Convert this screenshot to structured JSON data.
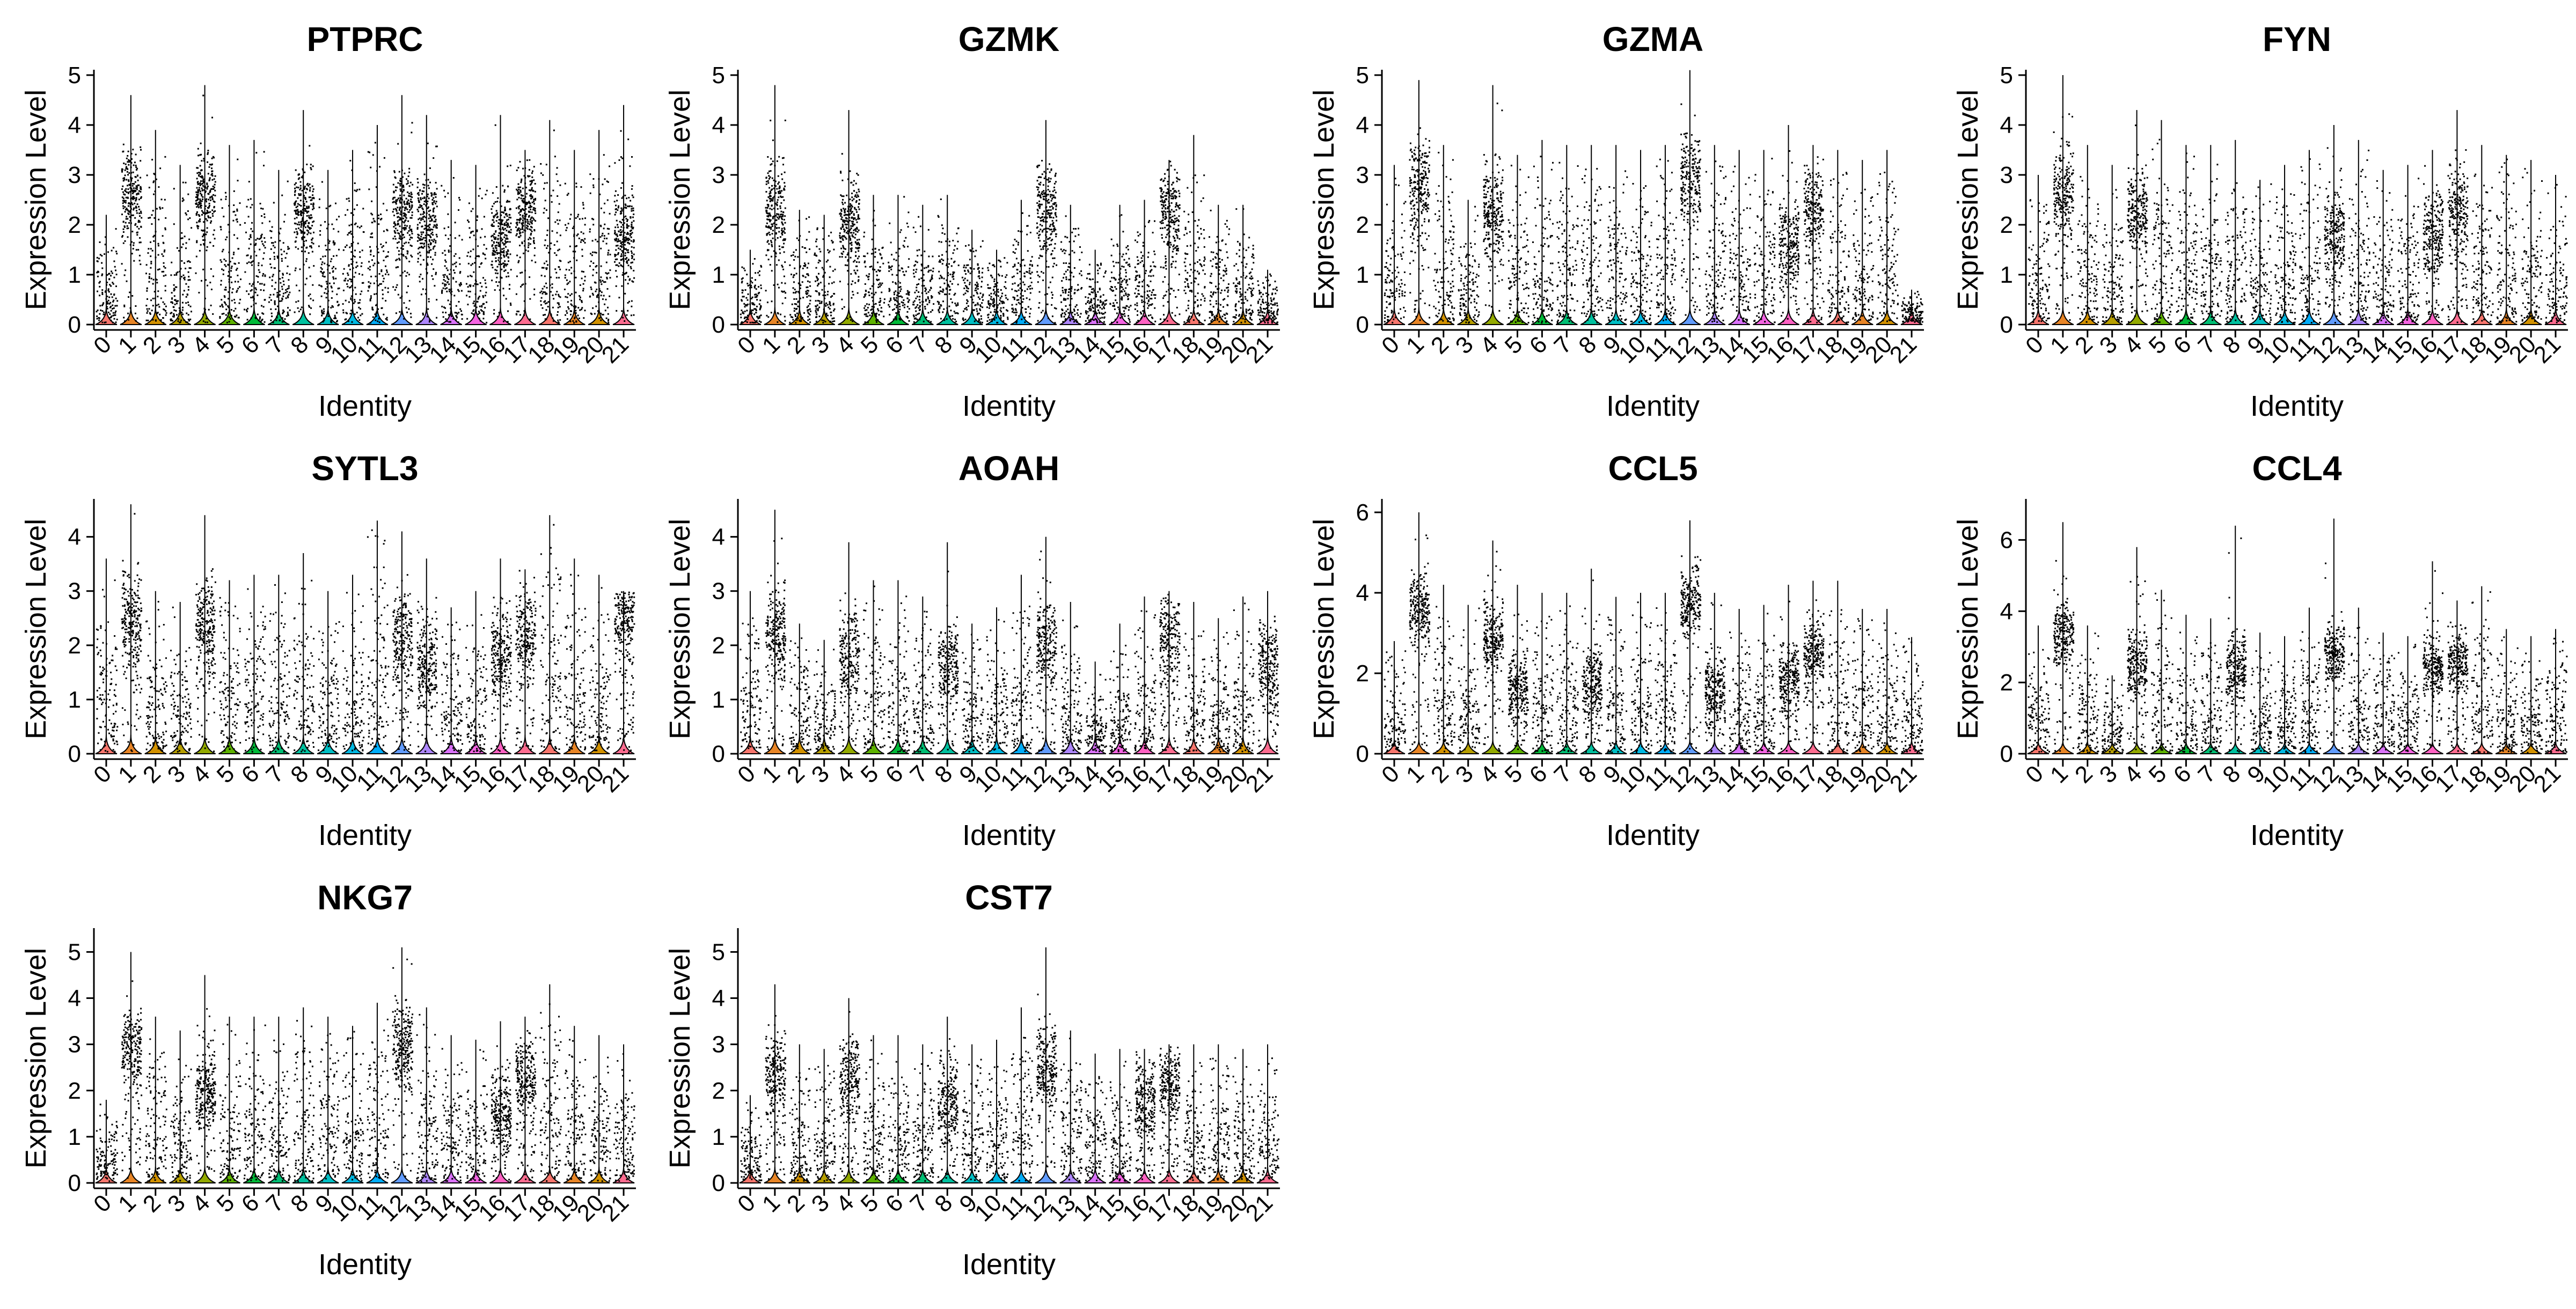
{
  "chart_data": [
    {
      "type": "violin",
      "title": "PTPRC",
      "xlabel": "Identity",
      "ylabel": "Expression Level",
      "ylim": [
        0,
        5
      ],
      "yticks": [
        0,
        1,
        2,
        3,
        4,
        5
      ],
      "categories": [
        "0",
        "1",
        "2",
        "3",
        "4",
        "5",
        "6",
        "7",
        "8",
        "9",
        "10",
        "11",
        "12",
        "13",
        "14",
        "15",
        "16",
        "17",
        "18",
        "19",
        "20",
        "21"
      ],
      "values": [
        0.6,
        2.6,
        0.8,
        0.5,
        2.6,
        1.0,
        1.0,
        1.0,
        2.3,
        0.5,
        0.4,
        0.8,
        2.3,
        2.0,
        0.5,
        0.9,
        1.8,
        2.3,
        1.1,
        1.1,
        0.6,
        1.8
      ],
      "maxima": [
        2.2,
        4.6,
        3.9,
        3.2,
        4.8,
        3.6,
        3.7,
        3.1,
        4.3,
        3.1,
        3.5,
        4.0,
        4.6,
        4.2,
        3.3,
        3.2,
        4.2,
        3.5,
        4.1,
        3.5,
        3.9,
        4.4
      ],
      "violin_colors": [
        "#F8766D",
        "#E88526",
        "#D39200",
        "#B79F00",
        "#93AA00",
        "#5EB300",
        "#00BA38",
        "#00BF74",
        "#00C19F",
        "#00BFC4",
        "#00B9E3",
        "#00ADFA",
        "#619CFF",
        "#AE87FF",
        "#DB72FB",
        "#F564E3",
        "#FF61C3",
        "#FF6C90",
        "#F8766D",
        "#E88526",
        "#D39200",
        "#FF6C90"
      ]
    },
    {
      "type": "violin",
      "title": "GZMK",
      "xlabel": "Identity",
      "ylabel": "Expression Level",
      "ylim": [
        0,
        5
      ],
      "yticks": [
        0,
        1,
        2,
        3,
        4,
        5
      ],
      "categories": [
        "0",
        "1",
        "2",
        "3",
        "4",
        "5",
        "6",
        "7",
        "8",
        "9",
        "10",
        "11",
        "12",
        "13",
        "14",
        "15",
        "16",
        "17",
        "18",
        "19",
        "20",
        "21"
      ],
      "values": [
        0.0,
        2.3,
        0.7,
        0.3,
        2.0,
        0.7,
        0.7,
        0.7,
        0.6,
        0.4,
        0.2,
        0.4,
        2.3,
        0.8,
        0.4,
        0.5,
        0.9,
        2.3,
        1.0,
        0.5,
        0.3,
        0.5
      ],
      "maxima": [
        1.5,
        4.8,
        2.3,
        2.2,
        4.3,
        2.6,
        2.6,
        2.4,
        2.6,
        1.9,
        1.5,
        2.5,
        4.1,
        2.4,
        1.5,
        2.4,
        2.5,
        3.3,
        3.8,
        2.4,
        2.4,
        1.1
      ],
      "violin_colors": [
        "#F8766D",
        "#E88526",
        "#D39200",
        "#B79F00",
        "#93AA00",
        "#5EB300",
        "#00BA38",
        "#00BF74",
        "#00C19F",
        "#00BFC4",
        "#00B9E3",
        "#00ADFA",
        "#619CFF",
        "#AE87FF",
        "#DB72FB",
        "#F564E3",
        "#FF61C3",
        "#FF6C90",
        "#F8766D",
        "#E88526",
        "#D39200",
        "#FF6C90"
      ]
    },
    {
      "type": "violin",
      "title": "GZMA",
      "xlabel": "Identity",
      "ylabel": "Expression Level",
      "ylim": [
        0,
        5
      ],
      "yticks": [
        0,
        1,
        2,
        3,
        4,
        5
      ],
      "categories": [
        "0",
        "1",
        "2",
        "3",
        "4",
        "5",
        "6",
        "7",
        "8",
        "9",
        "10",
        "11",
        "12",
        "13",
        "14",
        "15",
        "16",
        "17",
        "18",
        "19",
        "20",
        "21"
      ],
      "values": [
        0.7,
        2.8,
        1.0,
        0.5,
        2.2,
        1.0,
        0.9,
        1.0,
        1.0,
        0.4,
        0.4,
        0.5,
        2.9,
        1.2,
        0.4,
        0.9,
        1.6,
        2.3,
        1.1,
        0.9,
        1.1,
        0.7
      ],
      "maxima": [
        3.2,
        4.9,
        3.6,
        2.5,
        4.8,
        3.4,
        3.7,
        3.6,
        3.6,
        3.6,
        3.5,
        3.6,
        5.1,
        3.6,
        3.5,
        3.5,
        4.0,
        3.6,
        3.5,
        3.3,
        3.5,
        0.7
      ],
      "violin_colors": [
        "#F8766D",
        "#E88526",
        "#D39200",
        "#B79F00",
        "#93AA00",
        "#5EB300",
        "#00BA38",
        "#00BF74",
        "#00C19F",
        "#00BFC4",
        "#00B9E3",
        "#00ADFA",
        "#619CFF",
        "#AE87FF",
        "#DB72FB",
        "#F564E3",
        "#FF61C3",
        "#FF6C90",
        "#F8766D",
        "#E88526",
        "#D39200",
        "#FF6C90"
      ]
    },
    {
      "type": "violin",
      "title": "FYN",
      "xlabel": "Identity",
      "ylabel": "Expression Level",
      "ylim": [
        0,
        5
      ],
      "yticks": [
        0,
        1,
        2,
        3,
        4,
        5
      ],
      "categories": [
        "0",
        "1",
        "2",
        "3",
        "4",
        "5",
        "6",
        "7",
        "8",
        "9",
        "10",
        "11",
        "12",
        "13",
        "14",
        "15",
        "16",
        "17",
        "18",
        "19",
        "20",
        "21"
      ],
      "values": [
        0.7,
        2.6,
        0.8,
        0.6,
        2.2,
        1.4,
        1.2,
        1.2,
        1.3,
        0.6,
        0.5,
        1.4,
        1.8,
        1.4,
        0.7,
        1.0,
        1.8,
        2.3,
        1.2,
        0.9,
        1.0,
        1.2
      ],
      "maxima": [
        3.0,
        5.0,
        3.6,
        3.2,
        4.3,
        4.1,
        3.6,
        3.6,
        3.7,
        2.9,
        3.2,
        3.5,
        4.0,
        3.7,
        3.1,
        3.2,
        3.5,
        4.3,
        3.6,
        3.4,
        3.3,
        3.0
      ],
      "violin_colors": [
        "#F8766D",
        "#E88526",
        "#D39200",
        "#B79F00",
        "#93AA00",
        "#5EB300",
        "#00BA38",
        "#00BF74",
        "#00C19F",
        "#00BFC4",
        "#00B9E3",
        "#00ADFA",
        "#619CFF",
        "#AE87FF",
        "#DB72FB",
        "#F564E3",
        "#FF61C3",
        "#FF6C90",
        "#F8766D",
        "#E88526",
        "#D39200",
        "#FF6C90"
      ]
    },
    {
      "type": "violin",
      "title": "SYTL3",
      "xlabel": "Identity",
      "ylabel": "Expression Level",
      "ylim": [
        0,
        4.6
      ],
      "yticks": [
        0,
        1,
        2,
        3,
        4
      ],
      "categories": [
        "0",
        "1",
        "2",
        "3",
        "4",
        "5",
        "6",
        "7",
        "8",
        "9",
        "10",
        "11",
        "12",
        "13",
        "14",
        "15",
        "16",
        "17",
        "18",
        "19",
        "20",
        "21"
      ],
      "values": [
        0.9,
        2.5,
        0.8,
        0.6,
        2.4,
        0.9,
        0.8,
        0.8,
        1.4,
        0.5,
        0.4,
        0.6,
        2.1,
        1.6,
        0.5,
        0.9,
        1.8,
        2.2,
        1.0,
        0.8,
        0.6,
        2.6
      ],
      "maxima": [
        3.6,
        4.6,
        3.0,
        2.8,
        4.4,
        3.2,
        3.3,
        3.3,
        3.7,
        3.0,
        3.3,
        4.3,
        4.1,
        3.6,
        2.7,
        3.0,
        3.6,
        3.4,
        4.4,
        3.6,
        3.3,
        3.0
      ],
      "violin_colors": [
        "#F8766D",
        "#E88526",
        "#D39200",
        "#B79F00",
        "#93AA00",
        "#5EB300",
        "#00BA38",
        "#00BF74",
        "#00C19F",
        "#00BFC4",
        "#00B9E3",
        "#00ADFA",
        "#619CFF",
        "#AE87FF",
        "#DB72FB",
        "#F564E3",
        "#FF61C3",
        "#FF6C90",
        "#F8766D",
        "#E88526",
        "#D39200",
        "#FF6C90"
      ]
    },
    {
      "type": "violin",
      "title": "AOAH",
      "xlabel": "Identity",
      "ylabel": "Expression Level",
      "ylim": [
        0,
        4.6
      ],
      "yticks": [
        0,
        1,
        2,
        3,
        4
      ],
      "categories": [
        "0",
        "1",
        "2",
        "3",
        "4",
        "5",
        "6",
        "7",
        "8",
        "9",
        "10",
        "11",
        "12",
        "13",
        "14",
        "15",
        "16",
        "17",
        "18",
        "19",
        "20",
        "21"
      ],
      "values": [
        0.6,
        2.2,
        0.7,
        0.4,
        1.8,
        0.9,
        0.8,
        0.8,
        1.6,
        0.5,
        0.4,
        0.6,
        2.0,
        1.1,
        0.4,
        0.7,
        1.0,
        2.2,
        0.9,
        0.9,
        1.0,
        1.6
      ],
      "maxima": [
        3.0,
        4.5,
        2.4,
        2.1,
        3.9,
        3.2,
        3.2,
        2.9,
        3.9,
        2.4,
        2.7,
        3.3,
        4.0,
        2.8,
        1.7,
        2.4,
        2.9,
        3.0,
        2.8,
        2.5,
        2.9,
        3.0
      ],
      "violin_colors": [
        "#F8766D",
        "#E88526",
        "#D39200",
        "#B79F00",
        "#93AA00",
        "#5EB300",
        "#00BA38",
        "#00BF74",
        "#00C19F",
        "#00BFC4",
        "#00B9E3",
        "#00ADFA",
        "#619CFF",
        "#AE87FF",
        "#DB72FB",
        "#F564E3",
        "#FF61C3",
        "#FF6C90",
        "#F8766D",
        "#E88526",
        "#D39200",
        "#FF6C90"
      ]
    },
    {
      "type": "violin",
      "title": "CCL5",
      "xlabel": "Identity",
      "ylabel": "Expression Level",
      "ylim": [
        0,
        6.2
      ],
      "yticks": [
        0,
        2,
        4,
        6
      ],
      "categories": [
        "0",
        "1",
        "2",
        "3",
        "4",
        "5",
        "6",
        "7",
        "8",
        "9",
        "10",
        "11",
        "12",
        "13",
        "14",
        "15",
        "16",
        "17",
        "18",
        "19",
        "20",
        "21"
      ],
      "values": [
        0.8,
        3.6,
        1.2,
        0.6,
        2.8,
        1.6,
        1.3,
        1.4,
        1.7,
        0.7,
        0.5,
        0.7,
        3.8,
        1.6,
        0.6,
        1.0,
        1.8,
        2.5,
        1.5,
        1.2,
        1.2,
        1.0
      ],
      "maxima": [
        2.8,
        6.0,
        4.2,
        3.7,
        5.3,
        4.2,
        4.0,
        4.0,
        4.6,
        3.9,
        4.0,
        4.0,
        5.8,
        4.0,
        3.6,
        3.7,
        4.2,
        4.3,
        4.3,
        3.6,
        3.6,
        2.9
      ],
      "violin_colors": [
        "#F8766D",
        "#E88526",
        "#D39200",
        "#B79F00",
        "#93AA00",
        "#5EB300",
        "#00BA38",
        "#00BF74",
        "#00C19F",
        "#00BFC4",
        "#00B9E3",
        "#00ADFA",
        "#619CFF",
        "#AE87FF",
        "#DB72FB",
        "#F564E3",
        "#FF61C3",
        "#FF6C90",
        "#F8766D",
        "#E88526",
        "#D39200",
        "#FF6C90"
      ]
    },
    {
      "type": "violin",
      "title": "CCL4",
      "xlabel": "Identity",
      "ylabel": "Expression Level",
      "ylim": [
        0,
        7
      ],
      "yticks": [
        0,
        2,
        4,
        6
      ],
      "categories": [
        "0",
        "1",
        "2",
        "3",
        "4",
        "5",
        "6",
        "7",
        "8",
        "9",
        "10",
        "11",
        "12",
        "13",
        "14",
        "15",
        "16",
        "17",
        "18",
        "19",
        "20",
        "21"
      ],
      "values": [
        1.0,
        3.4,
        0.9,
        0.6,
        2.5,
        1.4,
        1.1,
        1.1,
        2.4,
        0.7,
        0.5,
        0.8,
        2.8,
        1.2,
        0.6,
        1.0,
        2.4,
        2.6,
        1.3,
        1.0,
        1.2,
        1.0
      ],
      "maxima": [
        3.6,
        6.5,
        3.6,
        2.2,
        5.8,
        4.6,
        3.9,
        3.8,
        6.4,
        3.4,
        3.3,
        4.1,
        6.6,
        4.1,
        3.4,
        3.3,
        5.4,
        4.3,
        4.7,
        3.5,
        3.3,
        3.5
      ],
      "violin_colors": [
        "#F8766D",
        "#E88526",
        "#D39200",
        "#B79F00",
        "#93AA00",
        "#5EB300",
        "#00BA38",
        "#00BF74",
        "#00C19F",
        "#00BFC4",
        "#00B9E3",
        "#00ADFA",
        "#619CFF",
        "#AE87FF",
        "#DB72FB",
        "#F564E3",
        "#FF61C3",
        "#FF6C90",
        "#F8766D",
        "#E88526",
        "#D39200",
        "#FF6C90"
      ]
    },
    {
      "type": "violin",
      "title": "NKG7",
      "xlabel": "Identity",
      "ylabel": "Expression Level",
      "ylim": [
        0,
        5.4
      ],
      "yticks": [
        0,
        1,
        2,
        3,
        4,
        5
      ],
      "categories": [
        "0",
        "1",
        "2",
        "3",
        "4",
        "5",
        "6",
        "7",
        "8",
        "9",
        "10",
        "11",
        "12",
        "13",
        "14",
        "15",
        "16",
        "17",
        "18",
        "19",
        "20",
        "21"
      ],
      "values": [
        0.5,
        2.9,
        0.9,
        0.6,
        2.0,
        1.3,
        1.1,
        1.1,
        1.3,
        0.5,
        0.4,
        0.5,
        3.0,
        1.2,
        0.5,
        0.9,
        1.6,
        2.3,
        1.2,
        1.0,
        0.8,
        0.8
      ],
      "maxima": [
        1.8,
        5.0,
        3.6,
        3.3,
        4.5,
        3.6,
        3.6,
        3.6,
        3.8,
        3.6,
        3.4,
        3.9,
        5.1,
        3.8,
        3.2,
        3.1,
        3.5,
        3.6,
        4.3,
        3.4,
        3.2,
        3.0
      ],
      "violin_colors": [
        "#F8766D",
        "#E88526",
        "#D39200",
        "#B79F00",
        "#93AA00",
        "#5EB300",
        "#00BA38",
        "#00BF74",
        "#00C19F",
        "#00BFC4",
        "#00B9E3",
        "#00ADFA",
        "#619CFF",
        "#AE87FF",
        "#DB72FB",
        "#F564E3",
        "#FF61C3",
        "#FF6C90",
        "#F8766D",
        "#E88526",
        "#D39200",
        "#FF6C90"
      ]
    },
    {
      "type": "violin",
      "title": "CST7",
      "xlabel": "Identity",
      "ylabel": "Expression Level",
      "ylim": [
        0,
        5.4
      ],
      "yticks": [
        0,
        1,
        2,
        3,
        4,
        5
      ],
      "categories": [
        "0",
        "1",
        "2",
        "3",
        "4",
        "5",
        "6",
        "7",
        "8",
        "9",
        "10",
        "11",
        "12",
        "13",
        "14",
        "15",
        "16",
        "17",
        "18",
        "19",
        "20",
        "21"
      ],
      "values": [
        0.5,
        2.4,
        0.8,
        0.5,
        2.3,
        1.0,
        0.9,
        0.9,
        1.8,
        0.5,
        0.4,
        0.5,
        2.5,
        1.1,
        0.5,
        0.9,
        1.8,
        2.2,
        1.2,
        0.8,
        0.8,
        1.1
      ],
      "maxima": [
        1.9,
        4.3,
        3.0,
        2.9,
        4.0,
        3.2,
        3.2,
        3.0,
        3.6,
        3.0,
        3.1,
        3.8,
        5.1,
        3.3,
        2.8,
        2.9,
        2.9,
        3.0,
        3.0,
        3.0,
        2.9,
        3.0
      ],
      "violin_colors": [
        "#F8766D",
        "#E88526",
        "#D39200",
        "#B79F00",
        "#93AA00",
        "#5EB300",
        "#00BA38",
        "#00BF74",
        "#00C19F",
        "#00BFC4",
        "#00B9E3",
        "#00ADFA",
        "#619CFF",
        "#AE87FF",
        "#DB72FB",
        "#F564E3",
        "#FF61C3",
        "#FF6C90",
        "#F8766D",
        "#E88526",
        "#D39200",
        "#FF6C90"
      ]
    }
  ]
}
